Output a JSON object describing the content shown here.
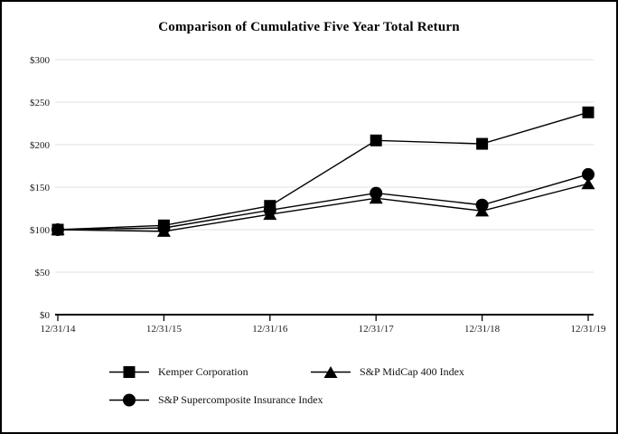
{
  "chart_data": {
    "type": "line",
    "title": "Comparison of Cumulative Five Year Total Return",
    "categories": [
      "12/31/14",
      "12/31/15",
      "12/31/16",
      "12/31/17",
      "12/31/18",
      "12/31/19"
    ],
    "yticks": [
      {
        "label": "$300",
        "value": 300
      },
      {
        "label": "$250",
        "value": 250
      },
      {
        "label": "$200",
        "value": 200
      },
      {
        "label": "$150",
        "value": 150
      },
      {
        "label": "$100",
        "value": 100
      },
      {
        "label": "$50",
        "value": 50
      },
      {
        "label": "$0",
        "value": 0
      }
    ],
    "ylim": [
      0,
      300
    ],
    "grid": true,
    "legend_position": "bottom",
    "series": [
      {
        "name": "Kemper Corporation",
        "marker": "square",
        "values": [
          100,
          105,
          128,
          205,
          201,
          238
        ]
      },
      {
        "name": "S&P MidCap 400 Index",
        "marker": "triangle",
        "values": [
          100,
          98,
          118,
          137,
          122,
          154
        ]
      },
      {
        "name": "S&P Supercomposite Insurance Index",
        "marker": "circle",
        "values": [
          100,
          102,
          123,
          143,
          129,
          165
        ]
      }
    ],
    "colors": {
      "series": "#000000",
      "grid": "#e0e0e0",
      "background": "#ffffff",
      "border": "#000000"
    }
  }
}
